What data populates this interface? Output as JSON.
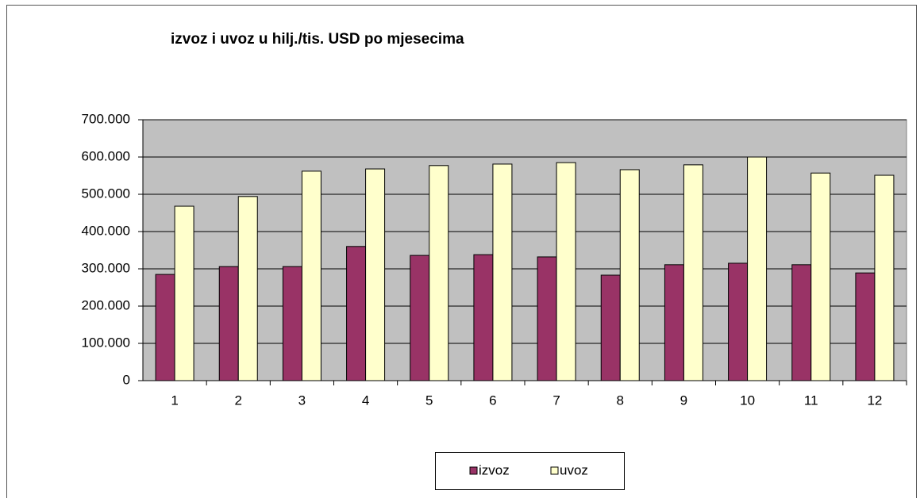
{
  "chart_data": {
    "type": "bar",
    "title": "izvoz i uvoz u hilj./tis. USD po mjesecima",
    "categories": [
      "1",
      "2",
      "3",
      "4",
      "5",
      "6",
      "7",
      "8",
      "9",
      "10",
      "11",
      "12"
    ],
    "series": [
      {
        "name": "izvoz",
        "color": "#993366",
        "values": [
          285000,
          306000,
          306000,
          360000,
          336000,
          338000,
          332000,
          283000,
          311000,
          315000,
          311000,
          289000
        ]
      },
      {
        "name": "uvoz",
        "color": "#ffffcc",
        "values": [
          468000,
          494000,
          562000,
          568000,
          577000,
          581000,
          585000,
          566000,
          579000,
          600000,
          557000,
          551000
        ]
      }
    ],
    "ylim": [
      0,
      700000
    ],
    "yticks": [
      0,
      {
        "value": 100000,
        "label": "100.000"
      },
      {
        "value": 200000,
        "label": "200.000"
      },
      {
        "value": 300000,
        "label": "300.000"
      },
      {
        "value": 400000,
        "label": "400.000"
      },
      {
        "value": 500000,
        "label": "500.000"
      },
      {
        "value": 600000,
        "label": "600.000"
      },
      {
        "value": 700000,
        "label": "700.000"
      }
    ],
    "grid": true,
    "legend": "bottom"
  }
}
